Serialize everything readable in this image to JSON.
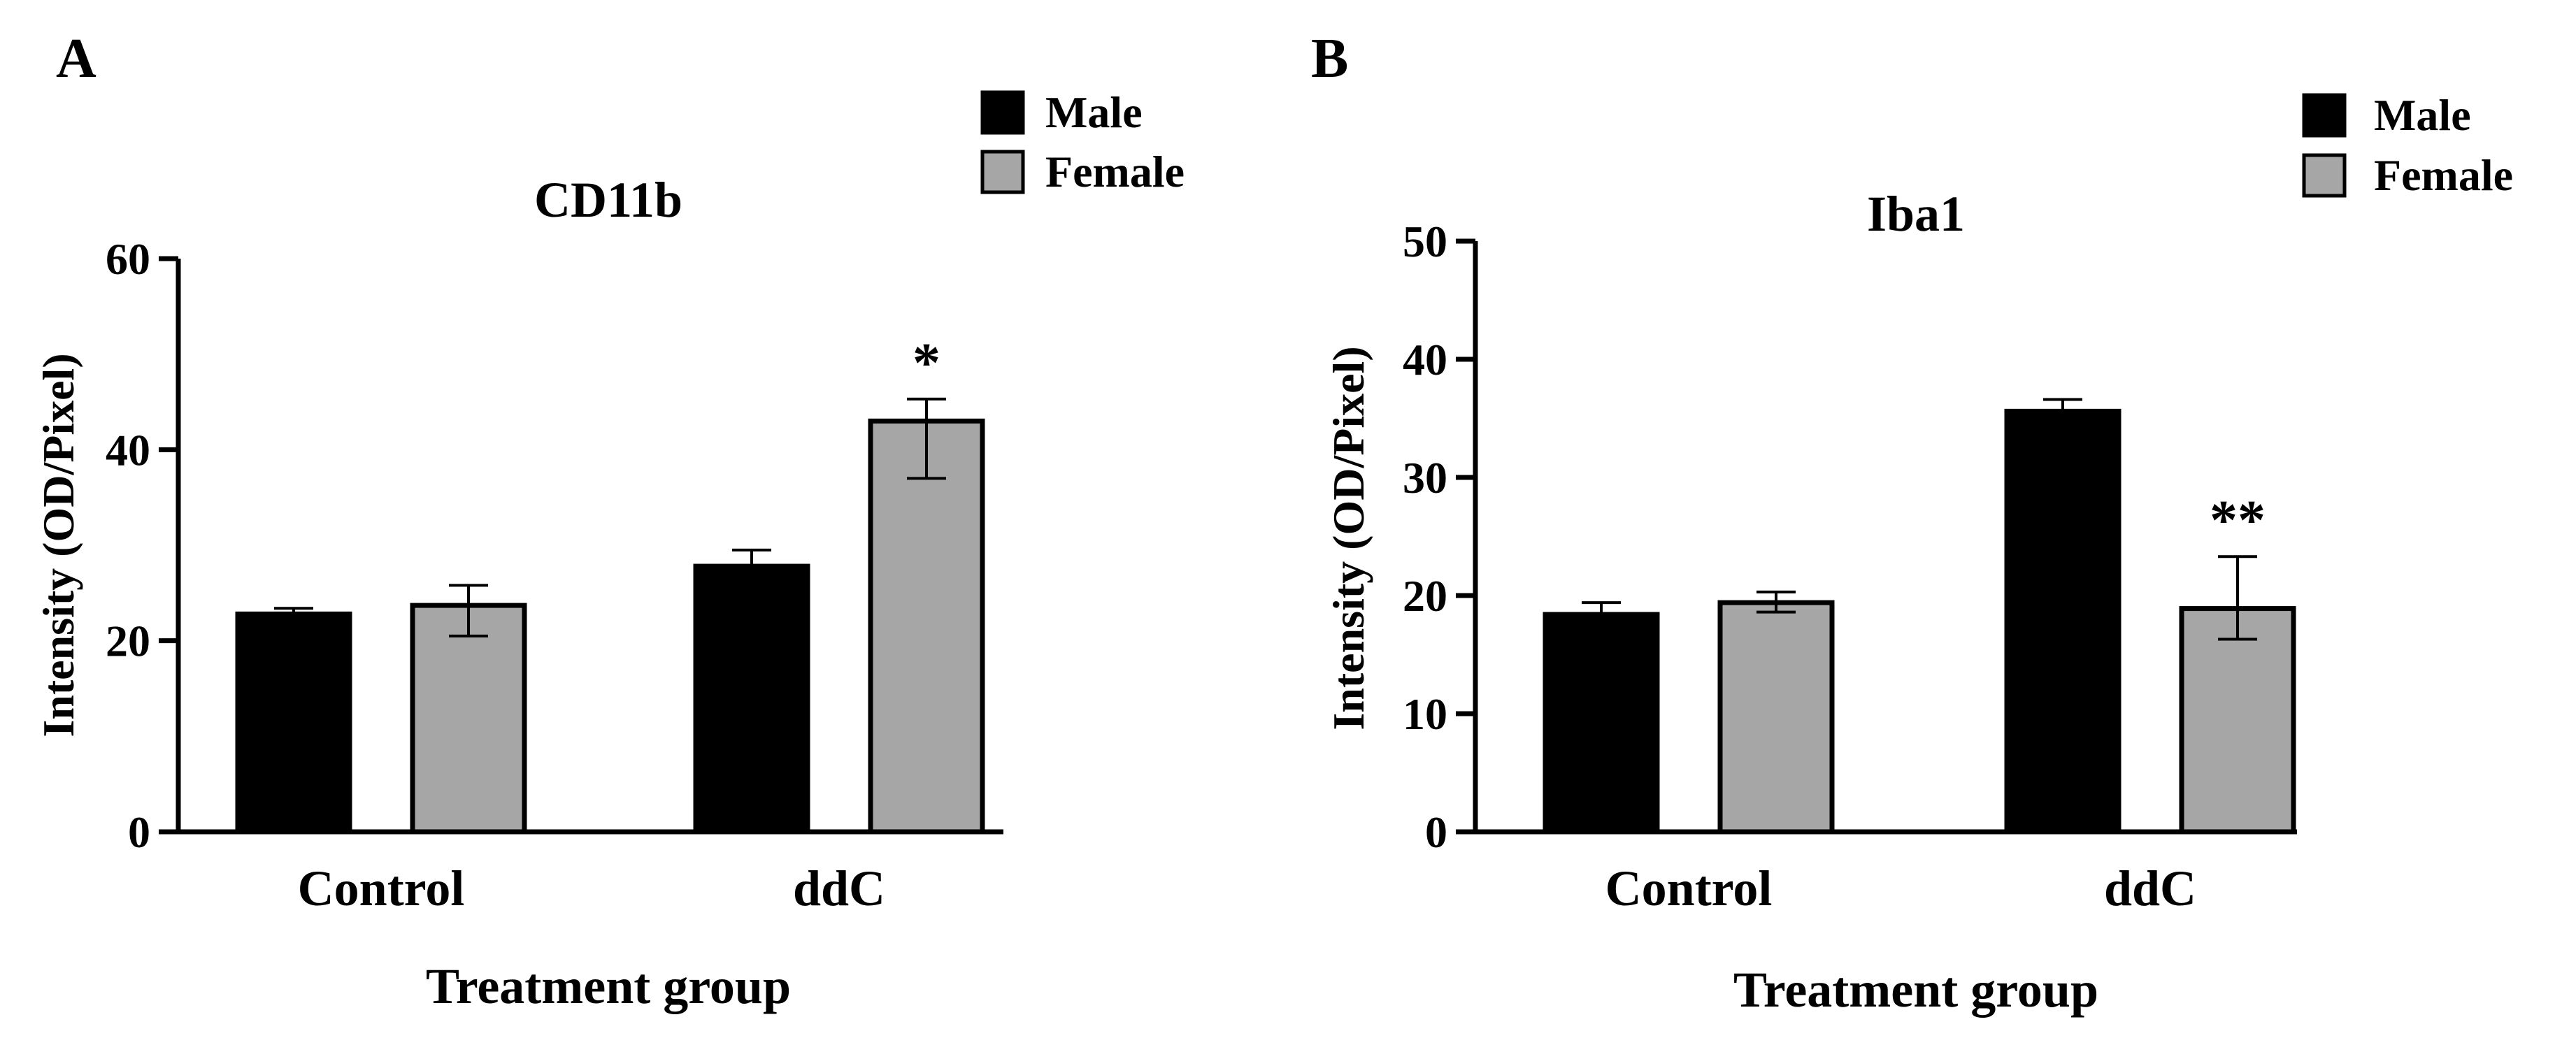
{
  "chart_data": [
    {
      "panel_label": "A",
      "type": "bar",
      "title": "CD11b",
      "xlabel": "Treatment group",
      "ylabel": "Intensity (OD/Pixel)",
      "ylim": [
        0,
        60
      ],
      "yticks": [
        "0",
        "20",
        "40",
        "60"
      ],
      "categories": [
        "Control",
        "ddC"
      ],
      "series": [
        {
          "name": "Male",
          "color": "#000000",
          "values": [
            22.8,
            27.8
          ],
          "err_low": [
            22.3,
            26.0
          ],
          "err_high": [
            23.4,
            29.5
          ]
        },
        {
          "name": "Female",
          "color": "#a6a6a6",
          "values": [
            23.7,
            43.0
          ],
          "err_low": [
            20.5,
            37.0
          ],
          "err_high": [
            25.8,
            45.3
          ]
        }
      ],
      "annotations": [
        {
          "text": "*",
          "series": 1,
          "category": 1
        }
      ],
      "legend": {
        "position": "top-right",
        "entries": [
          "Male",
          "Female"
        ]
      }
    },
    {
      "panel_label": "B",
      "type": "bar",
      "title": "Iba1",
      "xlabel": "Treatment group",
      "ylabel": "Intensity (OD/Pixel)",
      "ylim": [
        0,
        50
      ],
      "yticks": [
        "0",
        "10",
        "20",
        "30",
        "40",
        "50"
      ],
      "categories": [
        "Control",
        "ddC"
      ],
      "series": [
        {
          "name": "Male",
          "color": "#000000",
          "values": [
            18.4,
            35.6
          ],
          "err_low": [
            17.8,
            35.0
          ],
          "err_high": [
            19.4,
            36.6
          ]
        },
        {
          "name": "Female",
          "color": "#a6a6a6",
          "values": [
            19.4,
            18.9
          ],
          "err_low": [
            18.6,
            16.3
          ],
          "err_high": [
            20.3,
            23.3
          ]
        }
      ],
      "annotations": [
        {
          "text": "**",
          "series": 1,
          "category": 1
        }
      ],
      "legend": {
        "position": "top-right",
        "entries": [
          "Male",
          "Female"
        ]
      }
    }
  ]
}
